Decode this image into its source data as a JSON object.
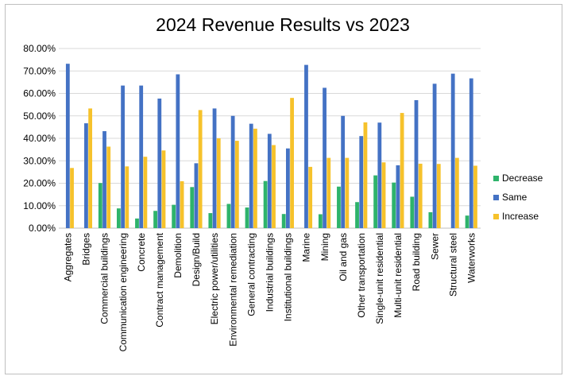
{
  "chart_data": {
    "type": "bar",
    "title": "2024 Revenue Results vs 2023",
    "xlabel": "",
    "ylabel": "",
    "ylim": [
      0,
      0.8
    ],
    "yticks": [
      "0.00%",
      "10.00%",
      "20.00%",
      "30.00%",
      "40.00%",
      "50.00%",
      "60.00%",
      "70.00%",
      "80.00%"
    ],
    "ytick_values": [
      0,
      0.1,
      0.2,
      0.3,
      0.4,
      0.5,
      0.6,
      0.7,
      0.8
    ],
    "grid": true,
    "legend_position": "right",
    "categories": [
      "Aggregates",
      "Bridges",
      "Commercial buildings",
      "Communication engineering",
      "Concrete",
      "Contract management",
      "Demolition",
      "Design/Build",
      "Electric power/utilities",
      "Environmental remediation",
      "General contracting",
      "Industrial buildings",
      "Institutional buildings",
      "Marine",
      "Mining",
      "Oil and gas",
      "Other transportation",
      "Single-unit residential",
      "Multi-unit residential",
      "Road building",
      "Sewer",
      "Structural steel",
      "Waterworks"
    ],
    "series": [
      {
        "name": "Decrease",
        "color": "#2eb36b",
        "values": [
          0.0,
          0.0,
          0.201,
          0.088,
          0.043,
          0.077,
          0.104,
          0.183,
          0.067,
          0.108,
          0.092,
          0.21,
          0.063,
          0.0,
          0.062,
          0.185,
          0.116,
          0.235,
          0.203,
          0.14,
          0.071,
          0.0,
          0.056
        ]
      },
      {
        "name": "Same",
        "color": "#4472c4",
        "values": [
          0.732,
          0.467,
          0.432,
          0.635,
          0.635,
          0.577,
          0.685,
          0.289,
          0.533,
          0.5,
          0.465,
          0.42,
          0.355,
          0.727,
          0.625,
          0.5,
          0.41,
          0.47,
          0.28,
          0.57,
          0.643,
          0.688,
          0.667
        ]
      },
      {
        "name": "Increase",
        "color": "#f6c22b",
        "values": [
          0.268,
          0.533,
          0.363,
          0.275,
          0.318,
          0.346,
          0.209,
          0.526,
          0.4,
          0.389,
          0.443,
          0.37,
          0.58,
          0.273,
          0.313,
          0.313,
          0.471,
          0.293,
          0.513,
          0.287,
          0.286,
          0.313,
          0.278
        ]
      }
    ]
  }
}
